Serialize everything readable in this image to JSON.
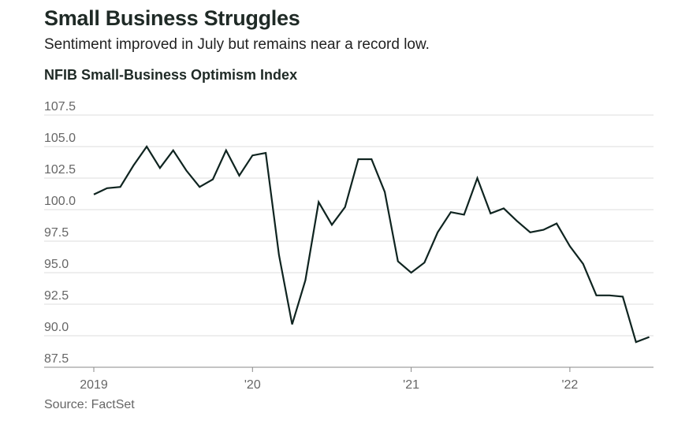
{
  "title": "Small Business Struggles",
  "subtitle": "Sentiment improved in July but remains near a record low.",
  "source": "Source: FactSet",
  "colors": {
    "line": "#0f2420",
    "grid": "#dddddd",
    "axis": "#888888"
  },
  "chart_data": {
    "type": "line",
    "title": "NFIB Small-Business Optimism Index",
    "xlabel": "",
    "ylabel": "",
    "ylim": [
      87.5,
      107.5
    ],
    "y_ticks": [
      107.5,
      105.0,
      102.5,
      100.0,
      97.5,
      95.0,
      92.5,
      90.0,
      87.5
    ],
    "y_tick_labels": [
      "107.5",
      "105.0",
      "102.5",
      "100.0",
      "97.5",
      "95.0",
      "92.5",
      "90.0",
      "87.5"
    ],
    "x_ticks": [
      "2019-01",
      "2020-01",
      "2021-01",
      "2022-01"
    ],
    "x_tick_labels": [
      "2019",
      "'20",
      "'21",
      "'22"
    ],
    "grid": true,
    "series": [
      {
        "x": [
          "2019-01",
          "2019-02",
          "2019-03",
          "2019-04",
          "2019-05",
          "2019-06",
          "2019-07",
          "2019-08",
          "2019-09",
          "2019-10",
          "2019-11",
          "2019-12",
          "2020-01",
          "2020-02",
          "2020-03",
          "2020-04",
          "2020-05",
          "2020-06",
          "2020-07",
          "2020-08",
          "2020-09",
          "2020-10",
          "2020-11",
          "2020-12",
          "2021-01",
          "2021-02",
          "2021-03",
          "2021-04",
          "2021-05",
          "2021-06",
          "2021-07",
          "2021-08",
          "2021-09",
          "2021-10",
          "2021-11",
          "2021-12",
          "2022-01",
          "2022-02",
          "2022-03",
          "2022-04",
          "2022-05",
          "2022-06",
          "2022-07"
        ],
        "values": [
          101.2,
          101.7,
          101.8,
          103.5,
          105.0,
          103.3,
          104.7,
          103.1,
          101.8,
          102.4,
          104.7,
          102.7,
          104.3,
          104.5,
          96.4,
          90.9,
          94.4,
          100.6,
          98.8,
          100.2,
          104.0,
          104.0,
          101.4,
          95.9,
          95.0,
          95.8,
          98.2,
          99.8,
          99.6,
          102.5,
          99.7,
          100.1,
          99.1,
          98.2,
          98.4,
          98.9,
          97.1,
          95.7,
          93.2,
          93.2,
          93.1,
          89.5,
          89.9
        ]
      }
    ]
  }
}
